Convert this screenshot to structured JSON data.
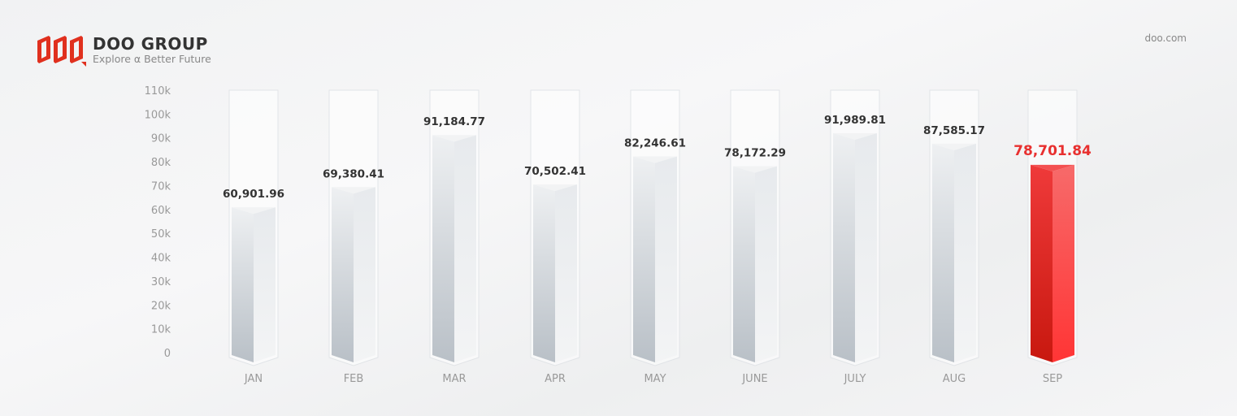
{
  "header": {
    "brand": "DOO GROUP",
    "tagline": "Explore α Better Future",
    "website": "doo.com"
  },
  "colors": {
    "highlight": "#e8302f",
    "bar": "#e4e7ea",
    "label": "#333333",
    "axis": "#999999"
  },
  "chart_data": {
    "type": "bar",
    "categories": [
      "JAN",
      "FEB",
      "MAR",
      "APR",
      "MAY",
      "JUNE",
      "JULY",
      "AUG",
      "SEP"
    ],
    "values": [
      60901.96,
      69380.41,
      91184.77,
      70502.41,
      82246.61,
      78172.29,
      91989.81,
      87585.17,
      78701.84
    ],
    "data_labels": [
      "60,901.96",
      "69,380.41",
      "91,184.77",
      "70,502.41",
      "82,246.61",
      "78,172.29",
      "91,989.81",
      "87,585.17",
      "78,701.84"
    ],
    "highlight_category": "SEP",
    "ylim": [
      0,
      110000
    ],
    "yticks": [
      0,
      10000,
      20000,
      30000,
      40000,
      50000,
      60000,
      70000,
      80000,
      90000,
      100000,
      110000
    ],
    "ytick_labels": [
      "0",
      "10k",
      "20k",
      "30k",
      "40k",
      "50k",
      "60k",
      "70k",
      "80k",
      "90k",
      "100k",
      "110k"
    ],
    "grid": false,
    "title": "",
    "xlabel": "",
    "ylabel": ""
  }
}
